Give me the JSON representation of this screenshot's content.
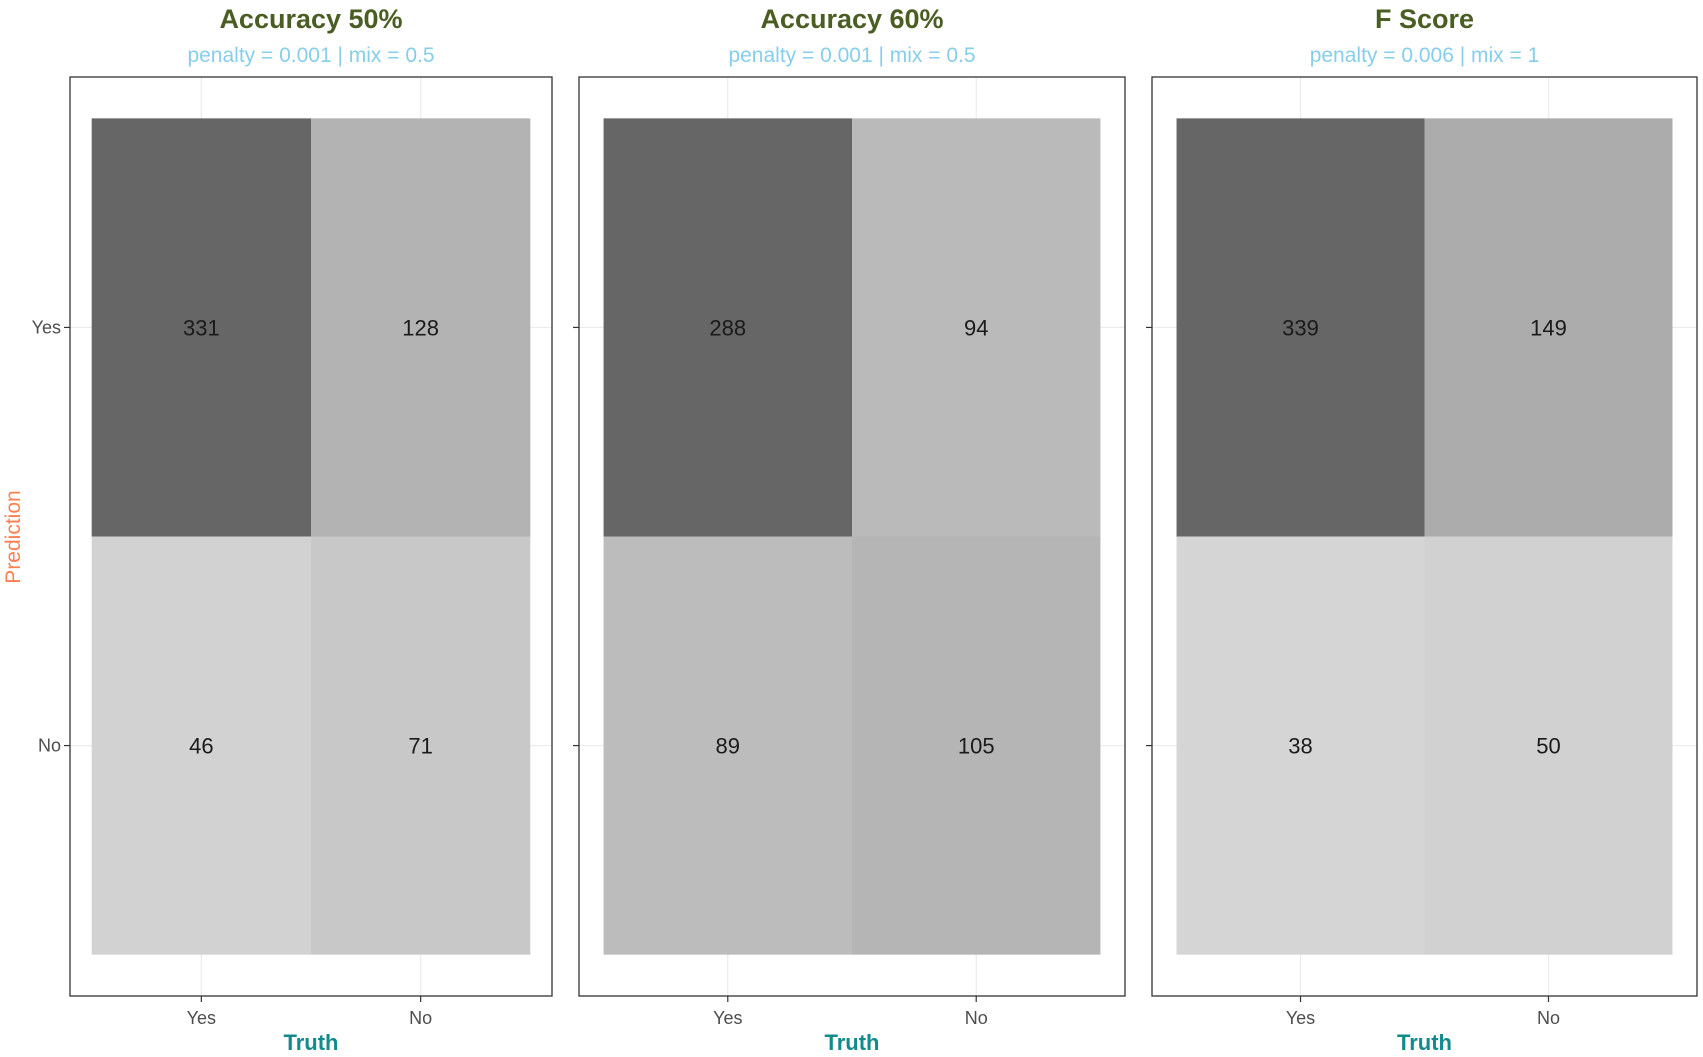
{
  "chart_data": {
    "type": "heatmap",
    "x_axis_title": "Truth",
    "y_axis_title": "Prediction",
    "x_categories": [
      "Yes",
      "No"
    ],
    "y_categories": [
      "Yes",
      "No"
    ],
    "panels": [
      {
        "title": "Accuracy 50%",
        "subtitle": "penalty = 0.001 | mix = 0.5",
        "cells": [
          {
            "prediction": "Yes",
            "truth": "Yes",
            "value": 331
          },
          {
            "prediction": "Yes",
            "truth": "No",
            "value": 128
          },
          {
            "prediction": "No",
            "truth": "Yes",
            "value": 46
          },
          {
            "prediction": "No",
            "truth": "No",
            "value": 71
          }
        ]
      },
      {
        "title": "Accuracy 60%",
        "subtitle": "penalty = 0.001 | mix = 0.5",
        "cells": [
          {
            "prediction": "Yes",
            "truth": "Yes",
            "value": 288
          },
          {
            "prediction": "Yes",
            "truth": "No",
            "value": 94
          },
          {
            "prediction": "No",
            "truth": "Yes",
            "value": 89
          },
          {
            "prediction": "No",
            "truth": "No",
            "value": 105
          }
        ]
      },
      {
        "title": "F Score",
        "subtitle": "penalty = 0.006 | mix = 1",
        "cells": [
          {
            "prediction": "Yes",
            "truth": "Yes",
            "value": 339
          },
          {
            "prediction": "Yes",
            "truth": "No",
            "value": 149
          },
          {
            "prediction": "No",
            "truth": "Yes",
            "value": 38
          },
          {
            "prediction": "No",
            "truth": "No",
            "value": 50
          }
        ]
      }
    ],
    "colors": {
      "title": "#4a5e23",
      "subtitle": "#87ceeb",
      "x_axis_title": "#128a8e",
      "y_axis_title": "#ff7f50",
      "panel_border": "#333333",
      "grid": "#ebebeb",
      "low_fill": "#e3e3e3",
      "high_fill": "#666666"
    }
  }
}
